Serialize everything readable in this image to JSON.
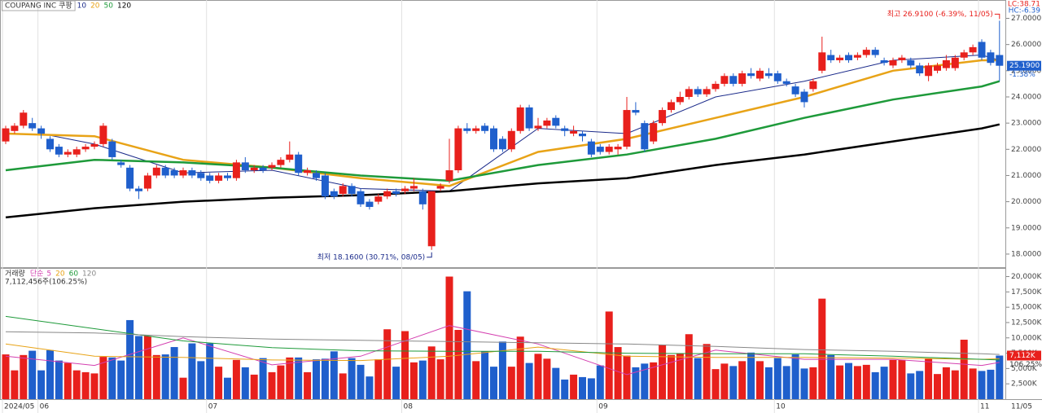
{
  "chart_data": [
    {
      "type": "candlestick",
      "title": "COUPANG INC 쿠팡",
      "categories": [
        "2024/05",
        null,
        null,
        null,
        "06",
        null,
        null,
        null,
        null,
        null,
        null,
        null,
        null,
        null,
        null,
        null,
        null,
        null,
        null,
        null,
        null,
        null,
        null,
        "07",
        null,
        null,
        null,
        null,
        null,
        null,
        null,
        null,
        null,
        null,
        null,
        null,
        null,
        null,
        null,
        null,
        null,
        null,
        null,
        null,
        null,
        "08",
        null,
        null,
        null,
        null,
        null,
        null,
        null,
        null,
        null,
        null,
        null,
        null,
        null,
        null,
        null,
        null,
        null,
        null,
        null,
        null,
        null,
        "09",
        null,
        null,
        null,
        null,
        null,
        null,
        null,
        null,
        null,
        null,
        null,
        null,
        null,
        null,
        null,
        null,
        null,
        null,
        null,
        "10",
        null,
        null,
        null,
        null,
        null,
        null,
        null,
        null,
        null,
        null,
        null,
        null,
        null,
        null,
        null,
        null,
        null,
        null,
        null,
        null,
        null,
        null,
        "11",
        null,
        null
      ],
      "ohlc": [
        [
          22.3,
          22.9,
          22.2,
          22.8
        ],
        [
          22.7,
          23.0,
          22.6,
          22.9
        ],
        [
          22.9,
          23.5,
          22.8,
          23.4
        ],
        [
          23.0,
          23.2,
          22.7,
          22.8
        ],
        [
          22.8,
          22.9,
          22.4,
          22.6
        ],
        [
          22.4,
          22.5,
          21.9,
          22.0
        ],
        [
          22.1,
          22.2,
          21.7,
          21.8
        ],
        [
          21.8,
          22.0,
          21.7,
          21.9
        ],
        [
          21.8,
          22.1,
          21.7,
          22.0
        ],
        [
          22.0,
          22.2,
          21.9,
          22.1
        ],
        [
          22.1,
          22.3,
          22.0,
          22.2
        ],
        [
          22.2,
          23.0,
          22.1,
          22.9
        ],
        [
          22.3,
          22.4,
          21.6,
          21.7
        ],
        [
          21.5,
          21.6,
          21.3,
          21.4
        ],
        [
          21.3,
          21.4,
          20.4,
          20.5
        ],
        [
          20.5,
          20.6,
          20.1,
          20.4
        ],
        [
          20.5,
          21.1,
          20.4,
          21.0
        ],
        [
          21.0,
          21.4,
          20.9,
          21.3
        ],
        [
          21.3,
          21.4,
          20.9,
          21.0
        ],
        [
          21.2,
          21.3,
          20.9,
          21.0
        ],
        [
          21.0,
          21.3,
          20.9,
          21.2
        ],
        [
          21.2,
          21.3,
          20.9,
          21.0
        ],
        [
          21.1,
          21.2,
          20.8,
          20.9
        ],
        [
          21.0,
          21.1,
          20.7,
          20.8
        ],
        [
          20.8,
          21.1,
          20.7,
          21.0
        ],
        [
          21.0,
          21.1,
          20.8,
          20.9
        ],
        [
          20.9,
          21.6,
          20.8,
          21.5
        ],
        [
          21.5,
          21.7,
          21.1,
          21.2
        ],
        [
          21.2,
          21.4,
          21.1,
          21.3
        ],
        [
          21.3,
          21.4,
          21.1,
          21.2
        ],
        [
          21.3,
          21.5,
          21.2,
          21.4
        ],
        [
          21.4,
          21.7,
          21.3,
          21.6
        ],
        [
          21.6,
          22.3,
          21.5,
          21.8
        ],
        [
          21.8,
          21.9,
          21.0,
          21.1
        ],
        [
          21.1,
          21.3,
          21.0,
          21.2
        ],
        [
          21.1,
          21.2,
          20.8,
          20.9
        ],
        [
          21.0,
          21.1,
          20.1,
          20.2
        ],
        [
          20.4,
          20.5,
          20.1,
          20.2
        ],
        [
          20.3,
          20.7,
          20.2,
          20.6
        ],
        [
          20.6,
          20.7,
          20.2,
          20.3
        ],
        [
          20.4,
          20.5,
          19.8,
          19.9
        ],
        [
          20.0,
          20.1,
          19.7,
          19.8
        ],
        [
          20.0,
          20.3,
          19.9,
          20.2
        ],
        [
          20.2,
          20.5,
          20.1,
          20.4
        ],
        [
          20.4,
          20.5,
          20.2,
          20.3
        ],
        [
          20.4,
          20.6,
          20.3,
          20.5
        ],
        [
          20.5,
          20.9,
          20.4,
          20.6
        ],
        [
          20.4,
          20.5,
          19.7,
          19.9
        ],
        [
          18.3,
          20.4,
          18.16,
          20.4
        ],
        [
          20.5,
          20.7,
          20.4,
          20.6
        ],
        [
          20.8,
          22.4,
          20.7,
          21.2
        ],
        [
          21.2,
          22.9,
          21.1,
          22.8
        ],
        [
          22.8,
          23.0,
          22.6,
          22.7
        ],
        [
          22.7,
          22.9,
          22.6,
          22.8
        ],
        [
          22.9,
          23.0,
          22.6,
          22.7
        ],
        [
          22.8,
          22.9,
          21.9,
          22.0
        ],
        [
          22.4,
          22.5,
          21.9,
          22.0
        ],
        [
          22.0,
          22.8,
          21.9,
          22.7
        ],
        [
          22.7,
          23.7,
          22.6,
          23.6
        ],
        [
          23.6,
          23.7,
          22.7,
          22.8
        ],
        [
          22.8,
          23.2,
          22.7,
          22.9
        ],
        [
          22.9,
          23.2,
          22.8,
          23.1
        ],
        [
          23.2,
          23.3,
          22.8,
          22.9
        ],
        [
          22.8,
          22.9,
          22.5,
          22.7
        ],
        [
          22.6,
          22.9,
          22.5,
          22.7
        ],
        [
          22.6,
          22.7,
          22.3,
          22.5
        ],
        [
          22.3,
          22.4,
          21.7,
          21.8
        ],
        [
          22.1,
          22.2,
          21.8,
          21.9
        ],
        [
          21.9,
          22.2,
          21.8,
          22.1
        ],
        [
          22.0,
          22.2,
          21.8,
          22.1
        ],
        [
          22.1,
          24.0,
          22.0,
          23.5
        ],
        [
          23.5,
          23.8,
          23.3,
          23.4
        ],
        [
          23.0,
          23.1,
          21.9,
          22.0
        ],
        [
          22.3,
          23.1,
          22.2,
          23.0
        ],
        [
          23.0,
          23.6,
          22.9,
          23.5
        ],
        [
          23.5,
          23.9,
          23.4,
          23.8
        ],
        [
          23.8,
          24.2,
          23.7,
          24.0
        ],
        [
          24.0,
          24.4,
          23.9,
          24.3
        ],
        [
          24.3,
          24.4,
          24.0,
          24.1
        ],
        [
          24.1,
          24.4,
          24.0,
          24.3
        ],
        [
          24.3,
          24.6,
          24.2,
          24.5
        ],
        [
          24.5,
          24.9,
          24.4,
          24.8
        ],
        [
          24.8,
          24.9,
          24.4,
          24.5
        ],
        [
          24.5,
          25.0,
          24.4,
          24.9
        ],
        [
          24.9,
          25.1,
          24.7,
          24.8
        ],
        [
          24.7,
          25.1,
          24.6,
          25.0
        ],
        [
          24.9,
          25.1,
          24.7,
          24.8
        ],
        [
          24.9,
          25.0,
          24.5,
          24.6
        ],
        [
          24.6,
          24.7,
          24.4,
          24.5
        ],
        [
          24.4,
          24.5,
          24.0,
          24.1
        ],
        [
          24.2,
          24.3,
          23.6,
          23.8
        ],
        [
          24.3,
          24.7,
          24.2,
          24.6
        ],
        [
          25.0,
          26.3,
          24.9,
          25.7
        ],
        [
          25.6,
          25.8,
          25.3,
          25.4
        ],
        [
          25.4,
          25.6,
          25.3,
          25.5
        ],
        [
          25.6,
          25.7,
          25.3,
          25.4
        ],
        [
          25.5,
          25.7,
          25.4,
          25.6
        ],
        [
          25.6,
          25.9,
          25.5,
          25.8
        ],
        [
          25.8,
          25.9,
          25.5,
          25.6
        ],
        [
          25.4,
          25.5,
          25.2,
          25.3
        ],
        [
          25.2,
          25.5,
          25.1,
          25.4
        ],
        [
          25.4,
          25.6,
          25.3,
          25.5
        ],
        [
          25.4,
          25.5,
          25.1,
          25.2
        ],
        [
          25.2,
          25.3,
          24.8,
          24.9
        ],
        [
          24.8,
          25.3,
          24.6,
          25.2
        ],
        [
          25.0,
          25.3,
          24.9,
          25.2
        ],
        [
          25.1,
          25.6,
          25.0,
          25.4
        ],
        [
          25.1,
          25.6,
          25.0,
          25.5
        ],
        [
          25.5,
          25.8,
          25.4,
          25.7
        ],
        [
          25.7,
          26.0,
          25.6,
          25.9
        ],
        [
          26.1,
          26.2,
          25.4,
          25.5
        ],
        [
          25.7,
          25.8,
          25.2,
          25.3
        ],
        [
          25.6,
          26.91,
          24.6,
          25.19
        ]
      ],
      "up_color": "#e8201c",
      "down_color": "#1f5fcc",
      "ylim": [
        17.5,
        27.7
      ],
      "yticks": [
        {
          "value": 18,
          "label": "18.0000"
        },
        {
          "value": 19,
          "label": "19.0000"
        },
        {
          "value": 20,
          "label": "20.0000"
        },
        {
          "value": 21,
          "label": "21.0000"
        },
        {
          "value": 22,
          "label": "22.0000"
        },
        {
          "value": 23,
          "label": "23.0000"
        },
        {
          "value": 24,
          "label": "24.0000"
        },
        {
          "value": 25,
          "label": "25.0000"
        },
        {
          "value": 26,
          "label": "26.0000"
        },
        {
          "value": 27,
          "label": "27.0000"
        }
      ],
      "ma_series": [
        {
          "name": "10",
          "color": "#1a2a8a",
          "x": [
            4,
            10,
            20,
            30,
            40,
            50,
            60,
            70,
            80,
            90,
            100,
            110,
            112
          ],
          "values": [
            22.6,
            22.2,
            21.1,
            21.2,
            20.5,
            20.4,
            22.8,
            22.6,
            24.0,
            24.6,
            25.4,
            25.6,
            25.4
          ]
        },
        {
          "name": "20",
          "color": "#e8a317",
          "x": [
            0,
            10,
            20,
            30,
            40,
            50,
            60,
            70,
            80,
            90,
            100,
            110,
            112
          ],
          "values": [
            22.6,
            22.5,
            21.6,
            21.3,
            20.9,
            20.6,
            21.9,
            22.4,
            23.2,
            24.0,
            25.0,
            25.4,
            25.4
          ]
        },
        {
          "name": "50",
          "color": "#1e9a3a",
          "x": [
            0,
            10,
            20,
            30,
            40,
            50,
            60,
            70,
            80,
            90,
            100,
            110,
            112
          ],
          "values": [
            21.2,
            21.6,
            21.5,
            21.3,
            21.0,
            20.8,
            21.4,
            21.8,
            22.4,
            23.2,
            23.9,
            24.4,
            24.6
          ]
        },
        {
          "name": "120",
          "color": "#000000",
          "x": [
            0,
            10,
            20,
            30,
            40,
            50,
            60,
            70,
            80,
            90,
            100,
            110,
            112
          ],
          "values": [
            19.4,
            19.75,
            20.0,
            20.15,
            20.25,
            20.4,
            20.7,
            20.9,
            21.4,
            21.8,
            22.3,
            22.8,
            22.95
          ]
        }
      ],
      "high_annotation": "최고 26.9100 (-6.39%, 11/05)",
      "low_annotation": "최저 18.1600 (30.71%, 08/05)",
      "corner_labels": [
        "LC:38.71",
        "HC:-6.39"
      ],
      "last_price": {
        "value": 25.19,
        "label": "25.1900"
      },
      "change": "-1.38%",
      "date_label": "11/05"
    },
    {
      "type": "bar",
      "title": "거래량",
      "ma_label": "단순",
      "summary": "7,112,456주(106.25%)",
      "values": [
        7300,
        4700,
        7200,
        7900,
        4700,
        8000,
        6300,
        5900,
        4700,
        4400,
        4200,
        6900,
        6800,
        6300,
        12900,
        10300,
        10300,
        7200,
        7300,
        8500,
        3500,
        9100,
        6200,
        9100,
        5300,
        3500,
        6400,
        5200,
        4000,
        6700,
        4400,
        5500,
        6800,
        6800,
        4400,
        6500,
        6600,
        7800,
        4200,
        6700,
        5600,
        3700,
        6500,
        11400,
        5300,
        11100,
        6000,
        6300,
        8600,
        6500,
        20000,
        11300,
        17600,
        6200,
        7800,
        5300,
        9400,
        5300,
        10200,
        5900,
        7400,
        6600,
        5100,
        3200,
        4000,
        3600,
        3400,
        5500,
        14300,
        8500,
        7100,
        5200,
        5800,
        6000,
        8900,
        7200,
        7500,
        10600,
        6700,
        9000,
        4900,
        5800,
        5400,
        6200,
        7600,
        6200,
        5200,
        6700,
        5400,
        7300,
        5000,
        5200,
        16400,
        7200,
        5500,
        5900,
        5400,
        5600,
        4400,
        5300,
        6400,
        6400,
        4200,
        4600,
        6600,
        4100,
        5200,
        4700,
        9700,
        5000,
        4600,
        4800,
        7112
      ],
      "ylim": [
        0,
        21400
      ],
      "yticks": [
        {
          "value": 2500,
          "label": "2,500K"
        },
        {
          "value": 5000,
          "label": "5,000K"
        },
        {
          "value": 7500,
          "label": "7,500K"
        },
        {
          "value": 10000,
          "label": "10,000K"
        },
        {
          "value": 12500,
          "label": "12,500K"
        },
        {
          "value": 15000,
          "label": "15,000K"
        },
        {
          "value": 17500,
          "label": "17,500K"
        },
        {
          "value": 20000,
          "label": "20,000K"
        }
      ],
      "ma_series": [
        {
          "name": "5",
          "color": "#d43fb0",
          "x": [
            0,
            10,
            20,
            30,
            40,
            50,
            60,
            70,
            80,
            90,
            100,
            110,
            112
          ],
          "values": [
            7000,
            5500,
            10000,
            5600,
            7000,
            12000,
            9000,
            4000,
            8000,
            6500,
            6500,
            5500,
            6000
          ]
        },
        {
          "name": "20",
          "color": "#e8a317",
          "x": [
            0,
            10,
            20,
            30,
            40,
            50,
            60,
            70,
            80,
            90,
            100,
            110,
            112
          ],
          "values": [
            9000,
            7000,
            6800,
            6400,
            6300,
            7000,
            8500,
            7000,
            6800,
            6800,
            6700,
            6500,
            6600
          ]
        },
        {
          "name": "60",
          "color": "#1e9a3a",
          "x": [
            0,
            10,
            20,
            30,
            40,
            50,
            60,
            70,
            80,
            90,
            100,
            110,
            112
          ],
          "values": [
            13500,
            11500,
            9500,
            8400,
            7900,
            7800,
            7800,
            7500,
            7400,
            7400,
            7000,
            6500,
            6400
          ]
        },
        {
          "name": "120",
          "color": "#888888",
          "x": [
            0,
            10,
            20,
            30,
            40,
            50,
            60,
            70,
            80,
            90,
            100,
            110,
            112
          ],
          "values": [
            11000,
            10800,
            10200,
            9800,
            9600,
            9400,
            9200,
            9000,
            8600,
            8100,
            7800,
            7400,
            7300
          ]
        }
      ],
      "last_volume": {
        "value": 7112,
        "label": "7,112K"
      },
      "ratio": "106.25%"
    }
  ]
}
